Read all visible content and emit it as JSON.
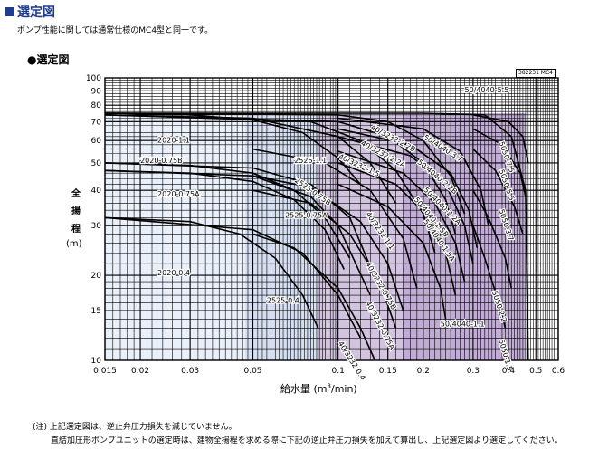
{
  "header": {
    "title": "選定図"
  },
  "subtitle": "ポンプ性能に関しては通常仕様のMC4型と同一です。",
  "section_title": "●選定図",
  "code_label": "382231 MC4",
  "notes": {
    "line1": "(注) 上記選定図は、逆止弁圧力損失を減じていません。",
    "line2": "直結加圧形ポンプユニットの選定時は、建物全揚程を求める際に下記の逆止弁圧力損失を加えて算出し、上記選定図より選定してください。"
  },
  "colors": {
    "grid": "#000000",
    "curve": "#000000",
    "region_light": "#e8eef8",
    "region_mid": "#d2dcf0",
    "region_purple": "#cdbcdc",
    "region_dark": "#b9a3cf"
  },
  "chart_data": {
    "type": "line",
    "title": "選定図",
    "xlabel": "給水量 (m³/min)",
    "ylabel": "全揚程 (m)",
    "x_scale": "log",
    "y_scale": "log",
    "xlim": [
      0.015,
      0.6
    ],
    "ylim": [
      10,
      100
    ],
    "x_ticks": [
      "0.015",
      "0.02",
      "0.03",
      "0.05",
      "0.1",
      "0.15",
      "0.2",
      "0.3",
      "0.4",
      "0.5",
      "0.6"
    ],
    "x_tick_values": [
      0.015,
      0.02,
      0.03,
      0.05,
      0.1,
      0.15,
      0.2,
      0.3,
      0.4,
      0.5,
      0.6
    ],
    "y_ticks": [
      "10",
      "15",
      "20",
      "30",
      "40",
      "50",
      "60",
      "70",
      "80",
      "90",
      "100"
    ],
    "y_tick_values": [
      10,
      15,
      20,
      30,
      40,
      50,
      60,
      70,
      80,
      90,
      100
    ],
    "grid": true,
    "regions": [
      {
        "x": [
          0.015,
          0.047
        ],
        "ylim": [
          10,
          74
        ],
        "color": "region_light"
      },
      {
        "x": [
          0.047,
          0.085
        ],
        "ylim": [
          10,
          74
        ],
        "color": "region_mid"
      },
      {
        "x": [
          0.085,
          0.17
        ],
        "ylim": [
          10,
          75
        ],
        "color": "region_purple"
      },
      {
        "x": [
          0.17,
          0.46
        ],
        "ylim": [
          10,
          75
        ],
        "color": "region_dark"
      }
    ],
    "series": [
      {
        "name": "2020-1.1",
        "points": [
          [
            0.015,
            75
          ],
          [
            0.03,
            74
          ],
          [
            0.05,
            71
          ],
          [
            0.075,
            64
          ],
          [
            0.1,
            52
          ],
          [
            0.12,
            42
          ]
        ]
      },
      {
        "name": "2020-0.75B",
        "points": [
          [
            0.015,
            50
          ],
          [
            0.03,
            49
          ],
          [
            0.05,
            46
          ],
          [
            0.07,
            40
          ],
          [
            0.09,
            32
          ],
          [
            0.11,
            23
          ]
        ]
      },
      {
        "name": "2020-0.75A",
        "points": [
          [
            0.015,
            47
          ],
          [
            0.03,
            46
          ],
          [
            0.05,
            43
          ],
          [
            0.07,
            37
          ],
          [
            0.09,
            29
          ],
          [
            0.105,
            21
          ]
        ]
      },
      {
        "name": "2020-0.4",
        "points": [
          [
            0.015,
            32
          ],
          [
            0.03,
            31
          ],
          [
            0.045,
            28
          ],
          [
            0.06,
            23
          ],
          [
            0.075,
            17
          ],
          [
            0.085,
            13
          ]
        ]
      },
      {
        "name": "2525-1.1",
        "points": [
          [
            0.015,
            74
          ],
          [
            0.05,
            72
          ],
          [
            0.1,
            62
          ],
          [
            0.13,
            50
          ],
          [
            0.16,
            36
          ]
        ]
      },
      {
        "name": "2525-0.75B",
        "points": [
          [
            0.015,
            50
          ],
          [
            0.05,
            48
          ],
          [
            0.08,
            42
          ],
          [
            0.11,
            32
          ],
          [
            0.14,
            18
          ]
        ]
      },
      {
        "name": "2525-0.75A",
        "points": [
          [
            0.015,
            47
          ],
          [
            0.05,
            45
          ],
          [
            0.08,
            38
          ],
          [
            0.1,
            30
          ],
          [
            0.13,
            17
          ]
        ]
      },
      {
        "name": "2525-0.4",
        "points": [
          [
            0.015,
            32
          ],
          [
            0.05,
            29
          ],
          [
            0.075,
            24
          ],
          [
            0.1,
            17
          ],
          [
            0.12,
            12
          ]
        ]
      },
      {
        "name": "40/3232-2.2B",
        "points": [
          [
            0.015,
            75
          ],
          [
            0.1,
            74
          ],
          [
            0.15,
            70
          ],
          [
            0.2,
            60
          ],
          [
            0.25,
            45
          ],
          [
            0.28,
            33
          ]
        ]
      },
      {
        "name": "40/3232-2.2A",
        "points": [
          [
            0.015,
            74
          ],
          [
            0.1,
            70
          ],
          [
            0.15,
            62
          ],
          [
            0.2,
            50
          ],
          [
            0.24,
            37
          ],
          [
            0.26,
            28
          ]
        ]
      },
      {
        "name": "40/3232-1.5",
        "points": [
          [
            0.015,
            74
          ],
          [
            0.08,
            70
          ],
          [
            0.12,
            60
          ],
          [
            0.16,
            47
          ],
          [
            0.2,
            33
          ],
          [
            0.22,
            24
          ]
        ]
      },
      {
        "name": "40/3232-1.1",
        "points": [
          [
            0.05,
            56
          ],
          [
            0.09,
            50
          ],
          [
            0.13,
            40
          ],
          [
            0.17,
            27
          ],
          [
            0.19,
            18
          ]
        ]
      },
      {
        "name": "40/3232-0.75B",
        "points": [
          [
            0.05,
            45
          ],
          [
            0.08,
            41
          ],
          [
            0.12,
            31
          ],
          [
            0.15,
            22
          ],
          [
            0.17,
            15
          ]
        ]
      },
      {
        "name": "40/3232-0.75A",
        "points": [
          [
            0.05,
            40
          ],
          [
            0.08,
            36
          ],
          [
            0.11,
            28
          ],
          [
            0.14,
            19
          ],
          [
            0.16,
            13
          ]
        ]
      },
      {
        "name": "40/3232-0.4",
        "points": [
          [
            0.05,
            28
          ],
          [
            0.07,
            25
          ],
          [
            0.1,
            18
          ],
          [
            0.12,
            13
          ],
          [
            0.135,
            10
          ]
        ]
      },
      {
        "name": "50/4040-5.5",
        "points": [
          [
            0.015,
            75
          ],
          [
            0.2,
            75
          ],
          [
            0.33,
            74
          ],
          [
            0.41,
            62
          ],
          [
            0.46,
            40
          ],
          [
            0.47,
            10
          ]
        ]
      },
      {
        "name": "50/4040-3.7",
        "points": [
          [
            0.1,
            72
          ],
          [
            0.2,
            66
          ],
          [
            0.27,
            55
          ],
          [
            0.32,
            40
          ],
          [
            0.34,
            30
          ]
        ]
      },
      {
        "name": "50/4040-2.2B",
        "points": [
          [
            0.1,
            66
          ],
          [
            0.18,
            58
          ],
          [
            0.25,
            46
          ],
          [
            0.29,
            34
          ],
          [
            0.31,
            25
          ]
        ]
      },
      {
        "name": "50/4040-2.2A",
        "points": [
          [
            0.1,
            62
          ],
          [
            0.18,
            53
          ],
          [
            0.24,
            42
          ],
          [
            0.28,
            30
          ],
          [
            0.3,
            22
          ]
        ]
      },
      {
        "name": "50/4040-1.5B",
        "points": [
          [
            0.1,
            55
          ],
          [
            0.17,
            46
          ],
          [
            0.22,
            36
          ],
          [
            0.26,
            26
          ],
          [
            0.28,
            19
          ]
        ]
      },
      {
        "name": "50/4040-1.5A",
        "points": [
          [
            0.1,
            50
          ],
          [
            0.16,
            42
          ],
          [
            0.21,
            32
          ],
          [
            0.24,
            24
          ],
          [
            0.26,
            17
          ]
        ]
      },
      {
        "name": "50/4040-1.1",
        "points": [
          [
            0.1,
            42
          ],
          [
            0.15,
            35
          ],
          [
            0.2,
            26
          ],
          [
            0.23,
            18
          ],
          [
            0.24,
            14
          ]
        ]
      },
      {
        "name": "5050-7.5",
        "points": [
          [
            0.3,
            74
          ],
          [
            0.4,
            70
          ],
          [
            0.45,
            62
          ],
          [
            0.47,
            50
          ]
        ]
      },
      {
        "name": "5050-5.5",
        "points": [
          [
            0.3,
            66
          ],
          [
            0.38,
            58
          ],
          [
            0.44,
            46
          ],
          [
            0.46,
            38
          ]
        ]
      },
      {
        "name": "5050-3.7",
        "points": [
          [
            0.3,
            56
          ],
          [
            0.36,
            47
          ],
          [
            0.42,
            35
          ],
          [
            0.45,
            28
          ]
        ]
      },
      {
        "name": "5050-2.2",
        "points": [
          [
            0.3,
            40
          ],
          [
            0.34,
            32
          ],
          [
            0.39,
            23
          ],
          [
            0.41,
            18
          ]
        ]
      },
      {
        "name": "5050-1.5",
        "points": [
          [
            0.3,
            30
          ],
          [
            0.33,
            23
          ],
          [
            0.37,
            16
          ],
          [
            0.39,
            13
          ]
        ]
      }
    ],
    "labels": [
      {
        "text": "50/4040-5.5",
        "x": 0.28,
        "y": 89,
        "angle": 0
      },
      {
        "text": "40/3232-2.2B",
        "x": 0.13,
        "y": 66,
        "angle": 28
      },
      {
        "text": "40/3232-2.2A",
        "x": 0.12,
        "y": 58,
        "angle": 28
      },
      {
        "text": "40/3232-1.5",
        "x": 0.1,
        "y": 52,
        "angle": 25
      },
      {
        "text": "2020-1.1",
        "x": 0.023,
        "y": 59,
        "angle": 0
      },
      {
        "text": "2020-0.75B",
        "x": 0.02,
        "y": 50,
        "angle": 0
      },
      {
        "text": "2525-1.1",
        "x": 0.07,
        "y": 50,
        "angle": 0
      },
      {
        "text": "2525-0.75B",
        "x": 0.07,
        "y": 43,
        "angle": 35
      },
      {
        "text": "2020-0.75A",
        "x": 0.023,
        "y": 38,
        "angle": 0
      },
      {
        "text": "2525-0.75A",
        "x": 0.065,
        "y": 32,
        "angle": 0
      },
      {
        "text": "2020-0.4",
        "x": 0.023,
        "y": 20,
        "angle": 0
      },
      {
        "text": "2525-0.4",
        "x": 0.056,
        "y": 16,
        "angle": 0
      },
      {
        "text": "50/4040-3.7",
        "x": 0.2,
        "y": 61,
        "angle": 32
      },
      {
        "text": "50/4040-2.2B",
        "x": 0.19,
        "y": 50,
        "angle": 40
      },
      {
        "text": "50/4040-2.2A",
        "x": 0.2,
        "y": 40,
        "angle": 45
      },
      {
        "text": "50/4040-1.5B",
        "x": 0.185,
        "y": 37,
        "angle": 50
      },
      {
        "text": "50/4040-1.5A",
        "x": 0.2,
        "y": 31,
        "angle": 55
      },
      {
        "text": "40/3232-1.1",
        "x": 0.125,
        "y": 33,
        "angle": 55
      },
      {
        "text": "40/3232-0.75B",
        "x": 0.125,
        "y": 22,
        "angle": 60
      },
      {
        "text": "40/3232-0.75A",
        "x": 0.125,
        "y": 16,
        "angle": 62
      },
      {
        "text": "40/3232-0.4",
        "x": 0.1,
        "y": 11.5,
        "angle": 58
      },
      {
        "text": "50/4040-1.1",
        "x": 0.23,
        "y": 13.2,
        "angle": 0
      },
      {
        "text": "5050-7.5",
        "x": 0.37,
        "y": 59,
        "angle": 70
      },
      {
        "text": "5050-5.5",
        "x": 0.37,
        "y": 47,
        "angle": 70
      },
      {
        "text": "5050-3.7",
        "x": 0.37,
        "y": 34,
        "angle": 72
      },
      {
        "text": "5050-2.2",
        "x": 0.35,
        "y": 17.5,
        "angle": 72
      },
      {
        "text": "5050-1.5",
        "x": 0.37,
        "y": 11.8,
        "angle": 74
      }
    ]
  }
}
